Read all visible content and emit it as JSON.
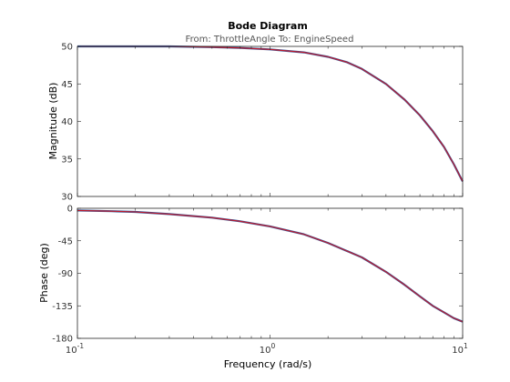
{
  "chart_data": {
    "type": "line",
    "title": "Bode Diagram",
    "subtitle": "From: ThrottleAngle  To: EngineSpeed",
    "xlabel": "Frequency  (rad/s)",
    "x_scale": "log",
    "xlim": [
      0.1,
      10
    ],
    "x_ticks": [
      {
        "value": 0.1,
        "base": "10",
        "exp": "-1"
      },
      {
        "value": 1,
        "base": "10",
        "exp": "0"
      },
      {
        "value": 10,
        "base": "10",
        "exp": "1"
      }
    ],
    "grid": false,
    "colors": {
      "measured": "#3b5b9a",
      "model": "#c0182a"
    },
    "panels": [
      {
        "ylabel": "Magnitude (dB)",
        "ylim": [
          30,
          50
        ],
        "yticks": [
          30,
          35,
          40,
          45,
          50
        ],
        "x": [
          0.1,
          0.2,
          0.3,
          0.5,
          0.7,
          1.0,
          1.5,
          2.0,
          2.5,
          3.0,
          4.0,
          5.0,
          6.0,
          7.0,
          8.0,
          9.0,
          10.0
        ],
        "series": [
          {
            "values": [
              50.0,
              50.0,
              50.0,
              49.9,
              49.8,
              49.6,
              49.2,
              48.6,
              47.9,
              47.0,
              45.0,
              42.9,
              40.8,
              38.7,
              36.6,
              34.3,
              32.0
            ]
          },
          {
            "values": [
              50.0,
              50.0,
              50.0,
              49.9,
              49.8,
              49.6,
              49.2,
              48.6,
              47.9,
              47.0,
              45.0,
              42.9,
              40.8,
              38.7,
              36.6,
              34.3,
              32.0
            ]
          }
        ]
      },
      {
        "ylabel": "Phase (deg)",
        "ylim": [
          -180,
          0
        ],
        "yticks": [
          0,
          -45,
          -90,
          -135,
          -180
        ],
        "x": [
          0.1,
          0.15,
          0.2,
          0.3,
          0.5,
          0.7,
          1.0,
          1.5,
          2.0,
          3.0,
          4.0,
          5.0,
          6.0,
          7.0,
          8.0,
          9.0,
          10.0
        ],
        "series": [
          {
            "values": [
              -3,
              -4,
              -5,
              -8,
              -13,
              -18,
              -25,
              -36,
              -48,
              -68,
              -88,
              -106,
              -122,
              -135,
              -144,
              -152,
              -157
            ]
          },
          {
            "values": [
              -3,
              -4,
              -5,
              -8,
              -13,
              -18,
              -25,
              -36,
              -48,
              -68,
              -88,
              -106,
              -122,
              -135,
              -144,
              -152,
              -157
            ]
          }
        ]
      }
    ]
  }
}
